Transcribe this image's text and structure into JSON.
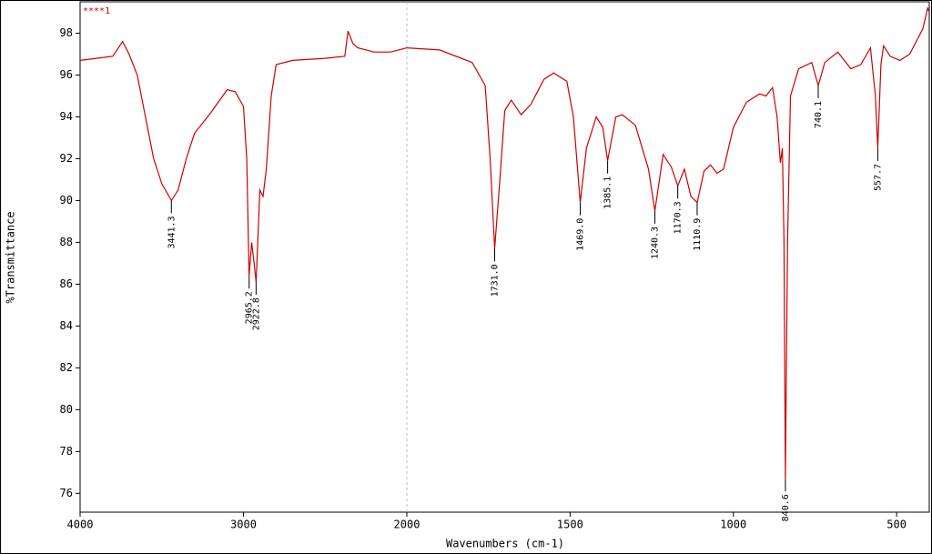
{
  "chart_data": {
    "type": "line",
    "xlabel": "Wavenumbers (cm-1)",
    "ylabel": "%Transmittance",
    "xlim": [
      4000,
      400
    ],
    "ylim": [
      75.1,
      99.5
    ],
    "x_break": 2000,
    "xticks": [
      4000,
      3000,
      2000,
      1500,
      1000,
      500
    ],
    "yticks": [
      76,
      78,
      80,
      82,
      84,
      86,
      88,
      90,
      92,
      94,
      96,
      98
    ],
    "series": [
      {
        "name": "****1",
        "color": "#cc0000",
        "x": [
          4000,
          3900,
          3800,
          3740,
          3700,
          3650,
          3600,
          3550,
          3500,
          3441.3,
          3400,
          3350,
          3300,
          3200,
          3100,
          3050,
          3000,
          2980,
          2965.2,
          2950,
          2935,
          2922.8,
          2900,
          2880,
          2860,
          2830,
          2800,
          2700,
          2500,
          2380,
          2360,
          2330,
          2300,
          2200,
          2100,
          2000,
          1900,
          1800,
          1760,
          1745,
          1731.0,
          1715,
          1700,
          1680,
          1650,
          1620,
          1580,
          1550,
          1510,
          1490,
          1469.0,
          1450,
          1420,
          1400,
          1385.1,
          1360,
          1340,
          1300,
          1260,
          1240.3,
          1215,
          1190,
          1170.3,
          1150,
          1130,
          1110.9,
          1090,
          1070,
          1050,
          1030,
          1000,
          960,
          920,
          900,
          880,
          866,
          856,
          850,
          845,
          840.6,
          834,
          825,
          800,
          760,
          740.1,
          720,
          680,
          640,
          610,
          580,
          565,
          557.7,
          548,
          540,
          520,
          490,
          460,
          420,
          405,
          400
        ],
        "values": [
          96.7,
          96.8,
          96.9,
          97.6,
          97.0,
          96.0,
          94.0,
          92.0,
          90.8,
          90.0,
          90.5,
          92.0,
          93.2,
          94.2,
          95.3,
          95.2,
          94.5,
          92.0,
          86.4,
          88.0,
          87.0,
          86.1,
          90.5,
          90.2,
          91.5,
          95.0,
          96.5,
          96.7,
          96.8,
          96.9,
          98.1,
          97.5,
          97.3,
          97.1,
          97.1,
          97.3,
          97.2,
          96.6,
          95.5,
          92.0,
          87.7,
          91.0,
          94.3,
          94.8,
          94.1,
          94.6,
          95.8,
          96.1,
          95.7,
          94.0,
          89.9,
          92.5,
          94.0,
          93.5,
          91.9,
          94.0,
          94.1,
          93.6,
          91.5,
          89.5,
          92.2,
          91.6,
          90.7,
          91.5,
          90.2,
          89.9,
          91.4,
          91.7,
          91.3,
          91.5,
          93.5,
          94.7,
          95.1,
          95.0,
          95.4,
          94.0,
          91.8,
          92.5,
          88.0,
          76.7,
          88.0,
          95.0,
          96.3,
          96.6,
          95.5,
          96.6,
          97.1,
          96.3,
          96.5,
          97.3,
          95.0,
          92.5,
          96.5,
          97.4,
          96.9,
          96.7,
          97.0,
          98.2,
          99.2,
          99.0
        ]
      }
    ],
    "peaks": [
      {
        "label": "3441.3",
        "x": 3441.3,
        "y": 90.0
      },
      {
        "label": "2965.2",
        "x": 2965.2,
        "y": 86.4
      },
      {
        "label": "2922.8",
        "x": 2922.8,
        "y": 86.1
      },
      {
        "label": "1731.0",
        "x": 1731.0,
        "y": 87.7
      },
      {
        "label": "1469.0",
        "x": 1469.0,
        "y": 89.9
      },
      {
        "label": "1385.1",
        "x": 1385.1,
        "y": 91.9
      },
      {
        "label": "1240.3",
        "x": 1240.3,
        "y": 89.5
      },
      {
        "label": "1170.3",
        "x": 1170.3,
        "y": 90.7
      },
      {
        "label": "1110.9",
        "x": 1110.9,
        "y": 89.9
      },
      {
        "label": "840.6",
        "x": 840.6,
        "y": 76.7
      },
      {
        "label": "740.1",
        "x": 740.1,
        "y": 95.5
      },
      {
        "label": "557.7",
        "x": 557.7,
        "y": 92.5
      }
    ]
  }
}
